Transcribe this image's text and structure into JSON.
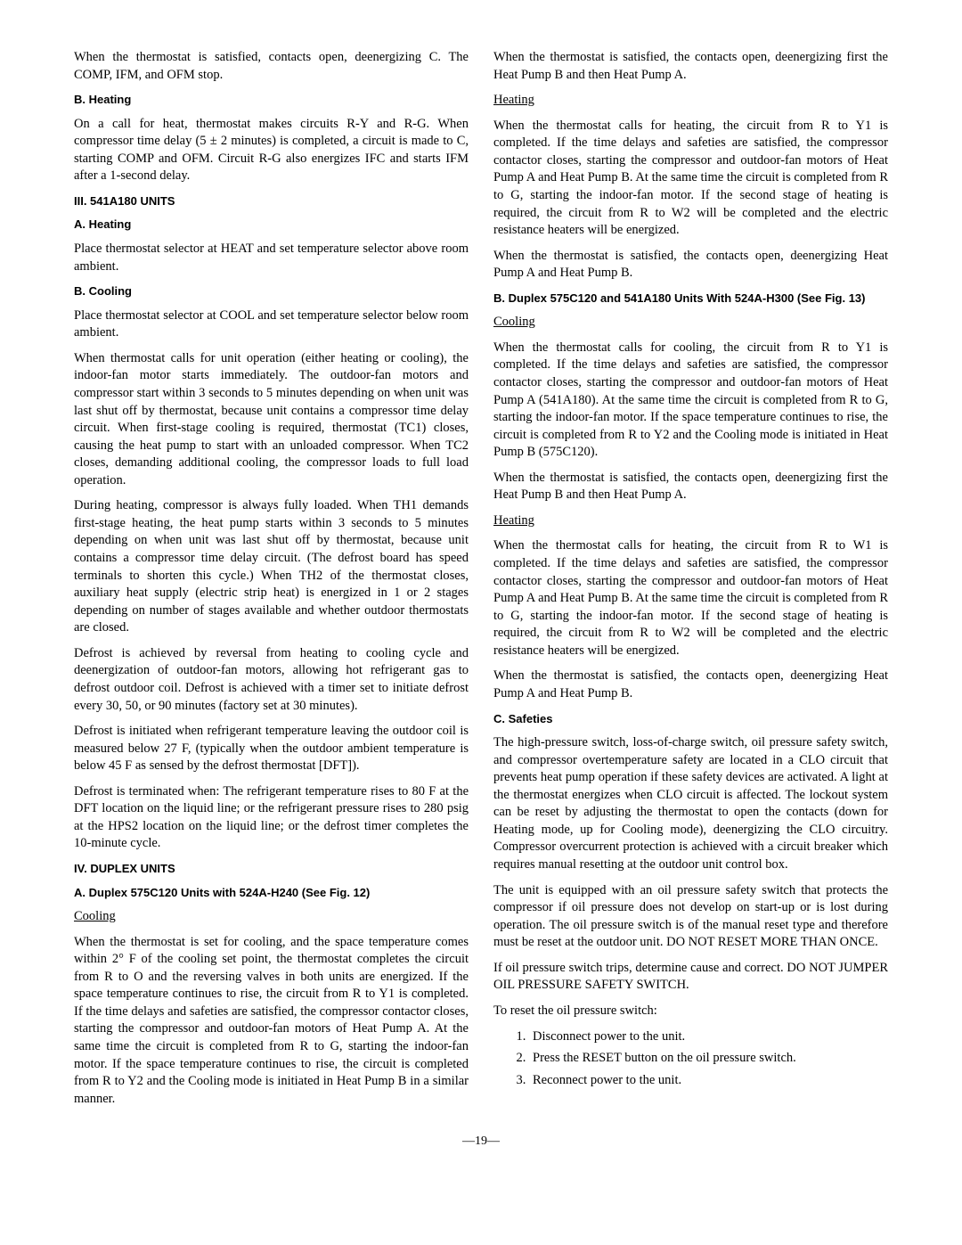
{
  "col1": {
    "p1": "When the thermostat is satisfied, contacts open, deenergizing C. The COMP, IFM, and OFM stop.",
    "h1": "B. Heating",
    "p2": "On a call for heat, thermostat makes circuits R-Y and R-G. When compressor time delay (5 ± 2 minutes) is completed, a circuit is made to C, starting COMP and OFM. Circuit R-G also energizes IFC and starts IFM after a 1-second delay.",
    "h2": "III. 541A180 UNITS",
    "h3": "A. Heating",
    "p3": "Place thermostat selector at HEAT and set temperature selector above room ambient.",
    "h4": "B. Cooling",
    "p4": "Place thermostat selector at COOL and set temperature selector below room ambient.",
    "p5": "When thermostat calls for unit operation (either heating or cooling), the indoor-fan motor starts immediately. The outdoor-fan motors and compressor start within 3 seconds to 5 minutes depending on when unit was last shut off by thermostat, because unit contains a compressor time delay circuit. When first-stage cooling is required, thermostat (TC1) closes, causing the heat pump to start with an unloaded compressor. When TC2 closes, demanding additional cooling, the compressor loads to full load operation.",
    "p6": "During heating, compressor is always fully loaded. When TH1 demands first-stage heating, the heat pump starts within 3 seconds to 5 minutes depending on when unit was last shut off by thermostat, because unit contains a compressor time delay circuit. (The defrost board has speed terminals to shorten this cycle.) When TH2 of the thermostat closes, auxiliary heat supply (electric strip heat) is energized in 1 or 2 stages depending on number of stages available and whether outdoor thermostats are closed.",
    "p7": "Defrost is achieved by reversal from heating to cooling cycle and deenergization of outdoor-fan motors, allowing hot refrigerant gas to defrost outdoor coil. Defrost is achieved with a timer set to initiate defrost every 30, 50, or 90 minutes (factory set at 30 minutes).",
    "p8": "Defrost is initiated when refrigerant temperature leaving the outdoor coil is measured below 27 F, (typically when the outdoor ambient temperature is below 45 F as sensed by the defrost thermostat [DFT]).",
    "p9": "Defrost is terminated when: The refrigerant temperature rises to 80 F at the DFT location on the liquid line; or the refrigerant pressure rises to 280 psig at the HPS2 location on the liquid line; or the defrost timer completes the 10-minute cycle.",
    "h5": "IV. DUPLEX UNITS",
    "h6": "A. Duplex 575C120 Units with 524A-H240 (See Fig. 12)",
    "sh1": "Cooling",
    "p10": "When the thermostat is set for cooling, and the space temperature comes within 2° F of the cooling set point, the thermostat completes the circuit from R to O and the reversing valves in both units are energized. If the space temperature continues to rise, the circuit from R to Y1 is completed. If the time delays and safeties are satisfied, the compressor contactor closes, starting the compressor and outdoor-fan motors of Heat Pump A. At the same time the circuit is completed from R to G, starting the indoor-fan motor. If the space temperature continues to rise, the circuit is completed from R to Y2 and the Cooling mode is initiated in Heat Pump B in a similar manner."
  },
  "col2": {
    "p1": "When the thermostat is satisfied, the contacts open, deenergizing first the Heat Pump B and then Heat Pump A.",
    "sh1": "Heating",
    "p2": "When the thermostat calls for heating, the circuit from R to Y1 is completed. If the time delays and safeties are satisfied, the compressor contactor closes, starting the compressor and outdoor-fan motors of Heat Pump A and Heat Pump B. At the same time the circuit is completed from R to G, starting the indoor-fan motor. If the second stage of heating is required, the circuit from R to W2 will be completed and the electric resistance heaters will be energized.",
    "p3": "When the thermostat is satisfied, the contacts open, deenergizing Heat Pump A and Heat Pump B.",
    "h1": "B. Duplex 575C120 and 541A180 Units With 524A-H300 (See Fig. 13)",
    "sh2": "Cooling",
    "p4": "When the thermostat calls for cooling, the circuit from R to Y1 is completed. If the time delays and safeties are satisfied, the compressor contactor closes, starting the compressor and outdoor-fan motors of Heat Pump A (541A180). At the same time the circuit is completed from R to G, starting the indoor-fan motor. If the space temperature continues to rise, the circuit is completed from R to Y2 and the Cooling mode is initiated in Heat Pump B (575C120).",
    "p5": "When the thermostat is satisfied, the contacts open, deenergizing first the Heat Pump B and then Heat Pump A.",
    "sh3": "Heating",
    "p6": "When the thermostat calls for heating, the circuit from R to W1 is completed. If the time delays and safeties are satisfied, the compressor contactor closes, starting the compressor and outdoor-fan motors of Heat Pump A and Heat Pump B. At the same time the circuit is completed from R to G, starting the indoor-fan motor. If the second stage of heating is required, the circuit from R to W2 will be completed and the electric resistance heaters will be energized.",
    "p7": "When the thermostat is satisfied, the contacts open, deenergizing Heat Pump A and Heat Pump B.",
    "h2": "C. Safeties",
    "p8": "The high-pressure switch, loss-of-charge switch, oil pressure safety switch, and compressor overtemperature safety are located in a CLO circuit that prevents heat pump operation if these safety devices are activated. A light at the thermostat energizes when CLO circuit is affected. The lockout system can be reset by adjusting the thermostat to open the contacts (down for Heating mode, up for Cooling mode), deenergizing the CLO circuitry. Compressor overcurrent protection is achieved with a circuit breaker which requires manual resetting at the outdoor unit control box.",
    "p9": "The unit is equipped with an oil pressure safety switch that protects the compressor if oil pressure does not develop on start-up or is lost during operation. The oil pressure switch is of the manual reset type and therefore must be reset at the outdoor unit. DO NOT RESET MORE THAN ONCE.",
    "p10": "If oil pressure switch trips, determine cause and correct. DO NOT JUMPER OIL PRESSURE SAFETY SWITCH.",
    "p11": "To reset the oil pressure switch:",
    "li1": "Disconnect power to the unit.",
    "li2": "Press the RESET button on the oil pressure switch.",
    "li3": "Reconnect power to the unit."
  },
  "pageNum": "—19—"
}
